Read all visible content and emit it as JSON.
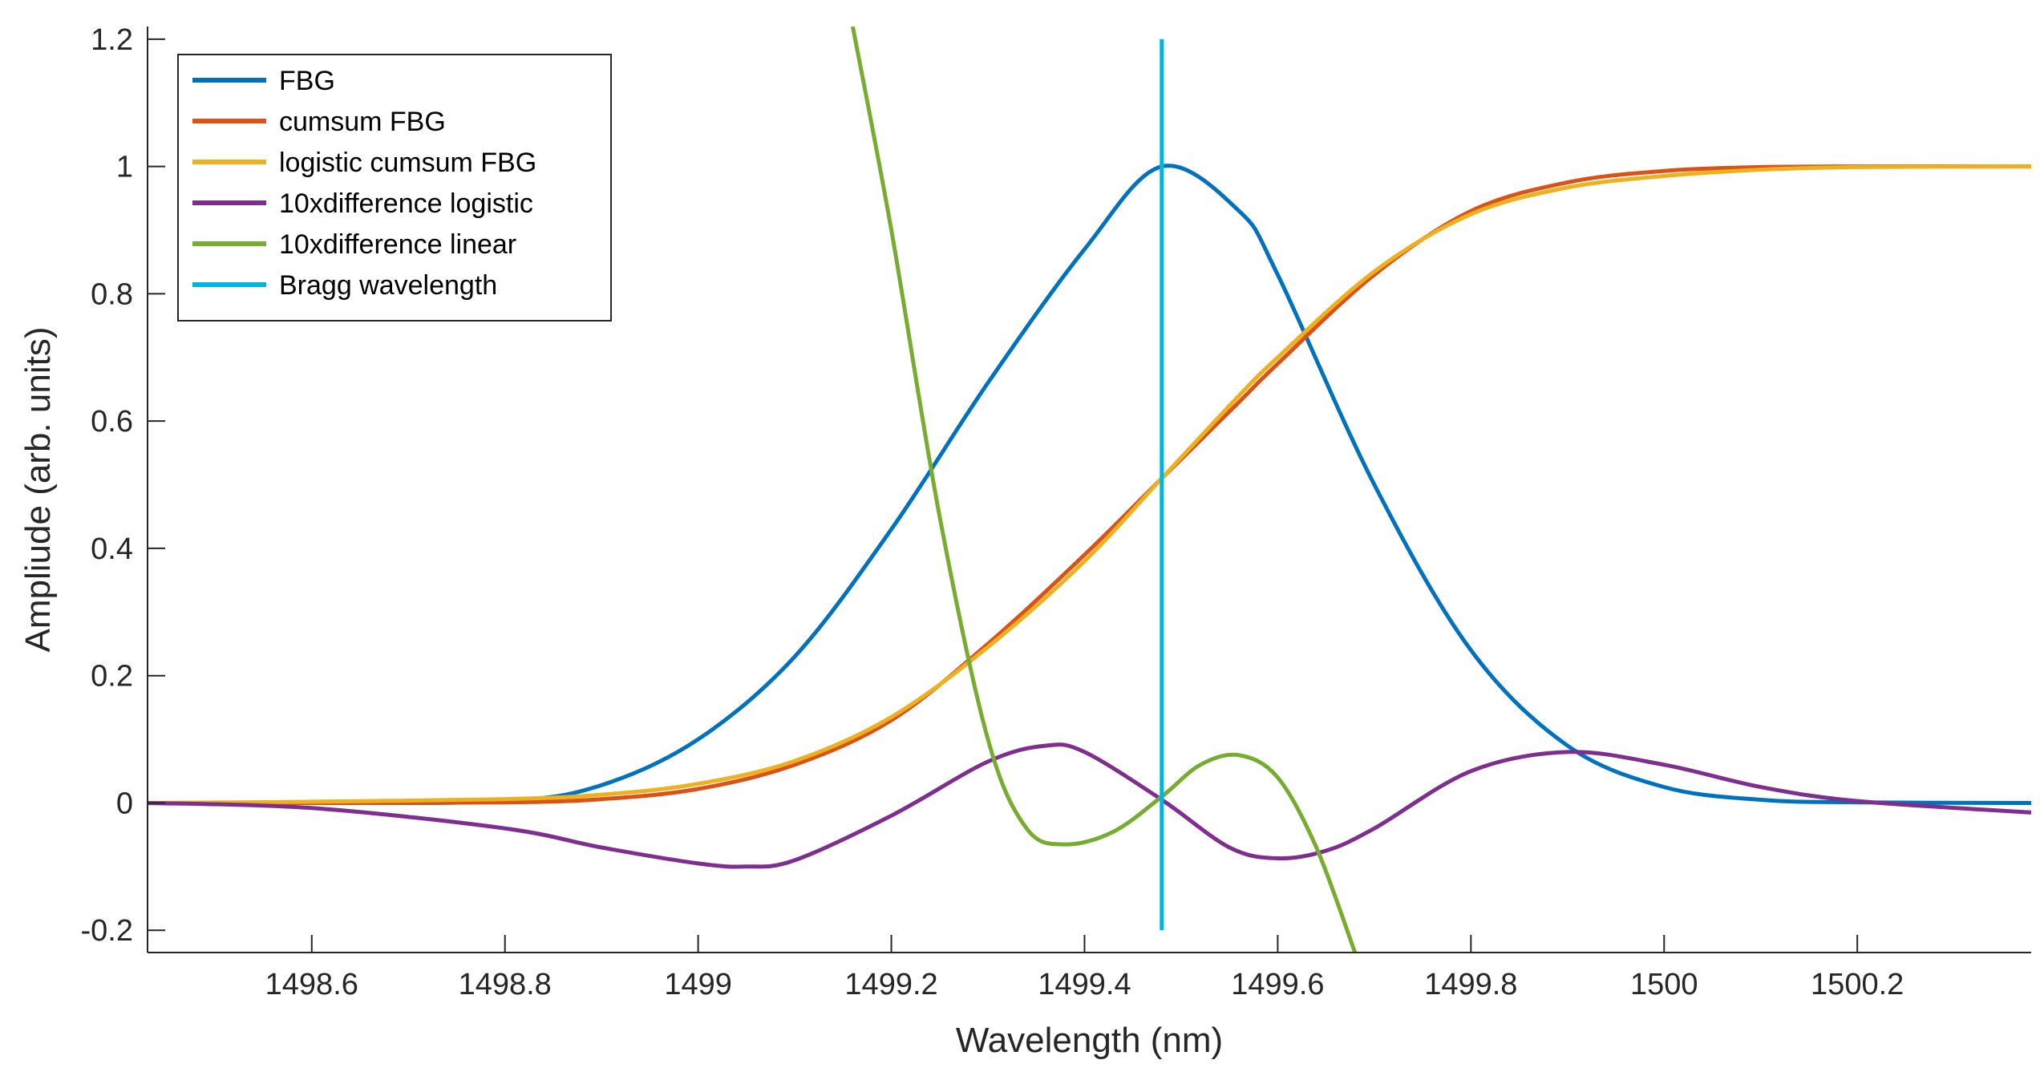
{
  "chart_data": {
    "type": "line",
    "title": "",
    "xlabel": "Wavelength (nm)",
    "ylabel": "Ampliude (arb. units)",
    "xlim": [
      1498.43,
      1500.38
    ],
    "ylim": [
      -0.235,
      1.22
    ],
    "xticks": [
      1498.6,
      1498.8,
      1499,
      1499.2,
      1499.4,
      1499.6,
      1499.8,
      1500,
      1500.2
    ],
    "xtick_labels": [
      "1498.6",
      "1498.8",
      "1499",
      "1499.2",
      "1499.4",
      "1499.6",
      "1499.8",
      "1500",
      "1500.2"
    ],
    "yticks": [
      -0.2,
      0,
      0.2,
      0.4,
      0.6,
      0.8,
      1,
      1.2
    ],
    "ytick_labels": [
      "-0.2",
      "0",
      "0.2",
      "0.4",
      "0.6",
      "0.8",
      "1",
      "1.2"
    ],
    "grid": false,
    "legend_position": "top-left",
    "series": [
      {
        "name": "FBG",
        "color": "#0072BD",
        "x": [
          1498.43,
          1498.6,
          1498.8,
          1498.9,
          1499.0,
          1499.1,
          1499.2,
          1499.3,
          1499.4,
          1499.48,
          1499.56,
          1499.6,
          1499.7,
          1499.8,
          1499.9,
          1500.0,
          1500.1,
          1500.2,
          1500.38
        ],
        "y": [
          0.0,
          0.0,
          0.003,
          0.028,
          0.1,
          0.23,
          0.43,
          0.66,
          0.87,
          1.0,
          0.93,
          0.83,
          0.5,
          0.24,
          0.09,
          0.025,
          0.005,
          0.001,
          0.0
        ]
      },
      {
        "name": "cumsum FBG",
        "color": "#D95319",
        "x": [
          1498.43,
          1498.6,
          1498.8,
          1498.9,
          1499.0,
          1499.1,
          1499.2,
          1499.3,
          1499.4,
          1499.48,
          1499.56,
          1499.6,
          1499.7,
          1499.8,
          1499.9,
          1500.0,
          1500.1,
          1500.2,
          1500.38
        ],
        "y": [
          0.0,
          0.0,
          0.001,
          0.006,
          0.022,
          0.06,
          0.13,
          0.25,
          0.39,
          0.51,
          0.63,
          0.69,
          0.83,
          0.93,
          0.975,
          0.993,
          0.999,
          1.0,
          1.0
        ]
      },
      {
        "name": "logistic cumsum FBG",
        "color": "#EDB120",
        "x": [
          1498.43,
          1498.6,
          1498.8,
          1498.9,
          1499.0,
          1499.1,
          1499.2,
          1499.3,
          1499.4,
          1499.48,
          1499.56,
          1499.6,
          1499.7,
          1499.8,
          1499.9,
          1500.0,
          1500.1,
          1500.2,
          1500.38
        ],
        "y": [
          0.0,
          0.002,
          0.006,
          0.013,
          0.03,
          0.066,
          0.135,
          0.245,
          0.38,
          0.51,
          0.64,
          0.7,
          0.835,
          0.925,
          0.967,
          0.985,
          0.995,
          0.999,
          1.0
        ]
      },
      {
        "name": "10xdifference logistic",
        "color": "#7E2F8E",
        "x": [
          1498.43,
          1498.6,
          1498.8,
          1498.9,
          1499.0,
          1499.05,
          1499.1,
          1499.2,
          1499.3,
          1499.36,
          1499.4,
          1499.48,
          1499.55,
          1499.6,
          1499.65,
          1499.7,
          1499.8,
          1499.9,
          1500.0,
          1500.1,
          1500.2,
          1500.38
        ],
        "y": [
          0.0,
          -0.008,
          -0.04,
          -0.07,
          -0.095,
          -0.1,
          -0.09,
          -0.02,
          0.065,
          0.09,
          0.08,
          0.005,
          -0.07,
          -0.087,
          -0.075,
          -0.04,
          0.05,
          0.08,
          0.06,
          0.025,
          0.003,
          -0.015
        ]
      },
      {
        "name": "10xdifference linear",
        "color": "#77AC30",
        "x": [
          1499.16,
          1499.2,
          1499.25,
          1499.3,
          1499.34,
          1499.38,
          1499.43,
          1499.48,
          1499.52,
          1499.56,
          1499.6,
          1499.64,
          1499.68
        ],
        "y": [
          1.22,
          0.9,
          0.45,
          0.1,
          -0.04,
          -0.065,
          -0.045,
          0.01,
          0.06,
          0.075,
          0.04,
          -0.07,
          -0.235
        ]
      },
      {
        "name": "Bragg wavelength",
        "color": "#00B4E0",
        "x": [
          1499.48,
          1499.48
        ],
        "y": [
          -0.2,
          1.2
        ]
      }
    ]
  }
}
